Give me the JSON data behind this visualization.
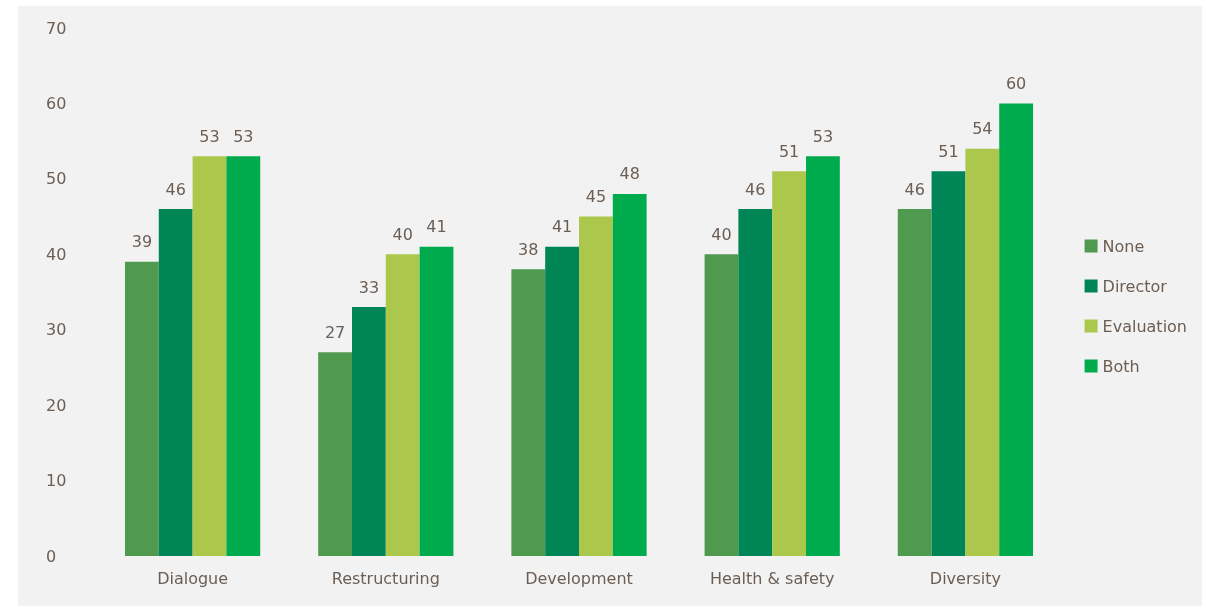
{
  "chart_data": {
    "type": "bar",
    "categories": [
      "Dialogue",
      "Restructuring",
      "Development",
      "Health & safety",
      "Diversity"
    ],
    "series": [
      {
        "name": "None",
        "color": "#4f9a4f",
        "values": [
          39,
          27,
          38,
          40,
          46
        ]
      },
      {
        "name": "Director",
        "color": "#008556",
        "values": [
          46,
          33,
          41,
          46,
          51
        ]
      },
      {
        "name": "Evaluation",
        "color": "#abc84c",
        "values": [
          53,
          40,
          45,
          51,
          54
        ]
      },
      {
        "name": "Both",
        "color": "#00ab4e",
        "values": [
          53,
          41,
          48,
          53,
          60
        ]
      }
    ],
    "ylim": [
      0,
      70
    ],
    "yticks": [
      0,
      10,
      20,
      30,
      40,
      50,
      60,
      70
    ],
    "grid": false,
    "legend": "right",
    "data_labels": true
  }
}
